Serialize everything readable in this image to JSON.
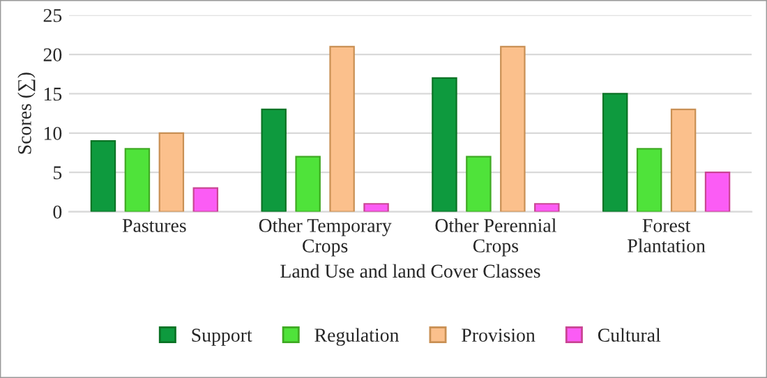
{
  "chart_data": {
    "type": "bar",
    "xlabel": "Land Use and land Cover Classes",
    "ylabel": "Scores (∑)",
    "categories": [
      "Pastures",
      "Other Temporary Crops",
      "Other Perennial Crops",
      "Forest Plantation"
    ],
    "series": [
      {
        "name": "Support",
        "color": "#0e9a3e",
        "values": [
          9,
          13,
          17,
          15
        ]
      },
      {
        "name": "Regulation",
        "color": "#4fe33a",
        "values": [
          8,
          7,
          7,
          8
        ]
      },
      {
        "name": "Provision",
        "color": "#fbc08c",
        "values": [
          10,
          21,
          21,
          13
        ]
      },
      {
        "name": "Cultural",
        "color": "#fb5cf5",
        "values": [
          3,
          1,
          1,
          5
        ]
      }
    ],
    "ylim": [
      0,
      25
    ],
    "yticks": [
      0,
      5,
      10,
      15,
      20,
      25
    ],
    "grid": "y",
    "legend": "bottom"
  }
}
